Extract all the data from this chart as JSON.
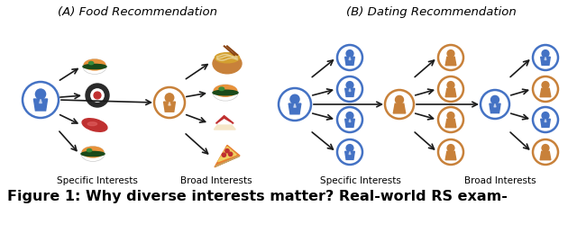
{
  "title_A": "(A) Food Recommendation",
  "title_B": "(B) Dating Recommendation",
  "label_specific": "Specific Interests",
  "label_broad": "Broad Interests",
  "caption": "Figure 1: Why diverse interests matter? Real-world RS exam-",
  "bg_color": "#ffffff",
  "arrow_color": "#1a1a1a",
  "blue": "#4472c4",
  "orange": "#c8813a",
  "dark_blue": "#2f5496",
  "food_colors": {
    "sushi_orange": "#e8923a",
    "sushi_dark": "#2a2a2a",
    "sashimi_red": "#c03030",
    "ramen_bowl": "#c8813a",
    "cake_red": "#c03030",
    "pizza_orange": "#e88030"
  }
}
